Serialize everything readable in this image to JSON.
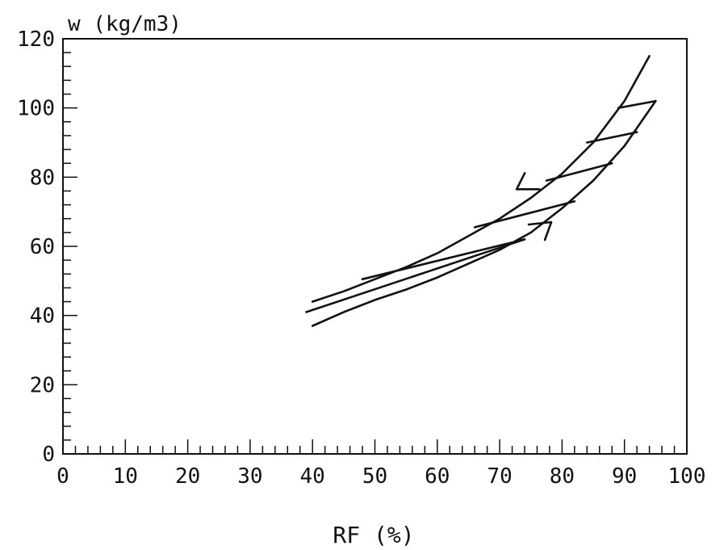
{
  "chart_data": {
    "type": "line",
    "title": "",
    "ylabel": "w (kg/m3)",
    "xlabel": "RF (%)",
    "xlim": [
      0,
      100
    ],
    "ylim": [
      0,
      120
    ],
    "xticks": [
      0,
      10,
      20,
      30,
      40,
      50,
      60,
      70,
      80,
      90,
      100
    ],
    "xtick_labels": [
      "0",
      "10",
      "20",
      "30",
      "40",
      "50",
      "60",
      "70",
      "80",
      "90",
      "100"
    ],
    "yticks": [
      0,
      20,
      40,
      60,
      80,
      100,
      120
    ],
    "ytick_labels": [
      "0",
      "20",
      "40",
      "60",
      "80",
      "100",
      "120"
    ],
    "grid": false,
    "line_color": "#111111",
    "series": [
      {
        "role": "upper-curve",
        "x": [
          40,
          45,
          50,
          55,
          60,
          65,
          70,
          75,
          80,
          85,
          90,
          94
        ],
        "y": [
          44,
          47,
          50.5,
          54,
          58,
          63,
          68,
          74,
          81,
          90,
          102,
          115
        ]
      },
      {
        "role": "lower-curve",
        "x": [
          40,
          45,
          50,
          55,
          60,
          65,
          70,
          75,
          80,
          85,
          90,
          95
        ],
        "y": [
          37,
          41,
          44.5,
          47.5,
          51,
          55,
          59,
          64,
          71,
          79,
          89,
          102
        ]
      },
      {
        "role": "scanning-line",
        "x": [
          39,
          74
        ],
        "y": [
          41,
          62
        ]
      },
      {
        "role": "scanning-line",
        "x": [
          48,
          74
        ],
        "y": [
          50.5,
          62
        ]
      },
      {
        "role": "scanning-line",
        "x": [
          66,
          82
        ],
        "y": [
          65.5,
          73
        ]
      },
      {
        "role": "scanning-line",
        "x": [
          77.5,
          88
        ],
        "y": [
          79,
          84
        ]
      },
      {
        "role": "scanning-line",
        "x": [
          84,
          92
        ],
        "y": [
          90,
          93
        ]
      },
      {
        "role": "scanning-line",
        "x": [
          89,
          95
        ],
        "y": [
          100,
          102
        ]
      }
    ],
    "arrows": [
      {
        "x": 73.5,
        "y": 76.5,
        "direction": "down-left"
      },
      {
        "x": 77.5,
        "y": 67,
        "direction": "up-right"
      }
    ]
  }
}
